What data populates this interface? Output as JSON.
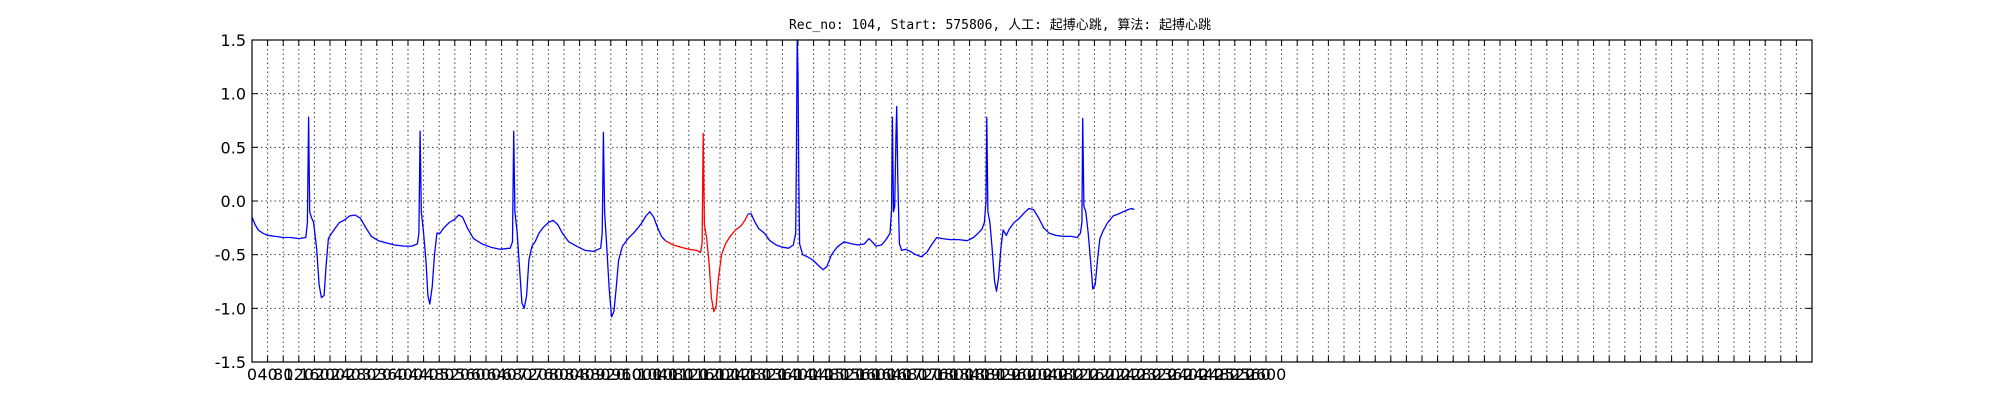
{
  "chart_data": {
    "type": "line",
    "title": "Rec_no: 104, Start: 575806, 人工: 起搏心跳, 算法: 起搏心跳",
    "xlabel": "",
    "ylabel": "",
    "xlim": [
      0,
      4000
    ],
    "ylim": [
      -1.5,
      1.5
    ],
    "grid": true,
    "x_tick_step": 40,
    "x_ticks_labeled_max": 2800,
    "y_ticks": [
      "1.5",
      "1.0",
      "0.5",
      "0.0",
      "-0.5",
      "-1.0",
      "-1.5"
    ],
    "x_tick_labels": [
      "0",
      "40",
      "80",
      "120",
      "160",
      "200",
      "240",
      "280",
      "320",
      "360",
      "400",
      "440",
      "480",
      "520",
      "560",
      "600",
      "640",
      "680",
      "720",
      "760",
      "800",
      "840",
      "880",
      "920",
      "960",
      "1000",
      "1040",
      "1080",
      "1120",
      "1160",
      "1200",
      "1240",
      "1280",
      "1320",
      "1360",
      "1400",
      "1440",
      "1480",
      "1520",
      "1560",
      "1600",
      "1640",
      "1680",
      "1720",
      "1760",
      "1800",
      "1840",
      "1880",
      "1920",
      "1960",
      "2000",
      "2040",
      "2080",
      "2120",
      "2160",
      "2200",
      "2240",
      "2280",
      "2320",
      "2360",
      "2400",
      "2440",
      "2480",
      "2520",
      "2560",
      "2600"
    ],
    "series": [
      {
        "color": "#0000ff",
        "points": [
          [
            0,
            -0.15
          ],
          [
            8,
            -0.22
          ],
          [
            16,
            -0.27
          ],
          [
            28,
            -0.3
          ],
          [
            40,
            -0.32
          ],
          [
            60,
            -0.33
          ],
          [
            80,
            -0.34
          ],
          [
            100,
            -0.34
          ],
          [
            120,
            -0.35
          ],
          [
            138,
            -0.34
          ],
          [
            142,
            -0.2
          ],
          [
            145,
            0.78
          ],
          [
            148,
            -0.1
          ],
          [
            152,
            -0.15
          ],
          [
            158,
            -0.2
          ],
          [
            166,
            -0.45
          ],
          [
            172,
            -0.78
          ],
          [
            178,
            -0.9
          ],
          [
            185,
            -0.88
          ],
          [
            190,
            -0.6
          ],
          [
            196,
            -0.35
          ],
          [
            204,
            -0.3
          ],
          [
            214,
            -0.25
          ],
          [
            224,
            -0.2
          ],
          [
            236,
            -0.18
          ],
          [
            250,
            -0.14
          ],
          [
            264,
            -0.13
          ],
          [
            278,
            -0.16
          ],
          [
            292,
            -0.25
          ],
          [
            306,
            -0.33
          ],
          [
            324,
            -0.37
          ],
          [
            344,
            -0.39
          ],
          [
            366,
            -0.41
          ],
          [
            390,
            -0.42
          ],
          [
            410,
            -0.42
          ],
          [
            424,
            -0.4
          ],
          [
            428,
            -0.3
          ],
          [
            431,
            0.65
          ],
          [
            434,
            -0.1
          ],
          [
            440,
            -0.3
          ],
          [
            446,
            -0.55
          ],
          [
            451,
            -0.88
          ],
          [
            456,
            -0.96
          ],
          [
            462,
            -0.8
          ],
          [
            468,
            -0.5
          ],
          [
            474,
            -0.3
          ],
          [
            482,
            -0.3
          ],
          [
            492,
            -0.25
          ],
          [
            506,
            -0.2
          ],
          [
            520,
            -0.17
          ],
          [
            530,
            -0.13
          ],
          [
            540,
            -0.15
          ],
          [
            552,
            -0.25
          ],
          [
            568,
            -0.35
          ],
          [
            590,
            -0.4
          ],
          [
            612,
            -0.43
          ],
          [
            636,
            -0.45
          ],
          [
            662,
            -0.44
          ],
          [
            668,
            -0.38
          ],
          [
            671,
            0.65
          ],
          [
            674,
            -0.1
          ],
          [
            680,
            -0.3
          ],
          [
            686,
            -0.62
          ],
          [
            692,
            -0.95
          ],
          [
            698,
            -1.0
          ],
          [
            704,
            -0.88
          ],
          [
            710,
            -0.55
          ],
          [
            718,
            -0.42
          ],
          [
            726,
            -0.38
          ],
          [
            736,
            -0.3
          ],
          [
            746,
            -0.25
          ],
          [
            760,
            -0.2
          ],
          [
            772,
            -0.18
          ],
          [
            784,
            -0.22
          ],
          [
            796,
            -0.3
          ],
          [
            812,
            -0.38
          ],
          [
            832,
            -0.42
          ],
          [
            854,
            -0.46
          ],
          [
            876,
            -0.47
          ],
          [
            894,
            -0.44
          ],
          [
            898,
            -0.3
          ],
          [
            901,
            0.64
          ],
          [
            904,
            -0.1
          ],
          [
            910,
            -0.45
          ],
          [
            916,
            -0.82
          ],
          [
            922,
            -1.08
          ],
          [
            928,
            -1.03
          ],
          [
            934,
            -0.8
          ],
          [
            940,
            -0.55
          ],
          [
            950,
            -0.42
          ],
          [
            964,
            -0.35
          ],
          [
            978,
            -0.3
          ],
          [
            990,
            -0.25
          ],
          [
            1000,
            -0.2
          ],
          [
            1010,
            -0.14
          ],
          [
            1020,
            -0.1
          ],
          [
            1030,
            -0.15
          ],
          [
            1040,
            -0.25
          ],
          [
            1050,
            -0.33
          ],
          [
            1060,
            -0.37
          ]
        ]
      },
      {
        "color": "#ff0000",
        "points": [
          [
            1060,
            -0.37
          ],
          [
            1080,
            -0.41
          ],
          [
            1100,
            -0.43
          ],
          [
            1120,
            -0.45
          ],
          [
            1140,
            -0.46
          ],
          [
            1150,
            -0.48
          ],
          [
            1154,
            -0.4
          ],
          [
            1157,
            0.63
          ],
          [
            1160,
            -0.22
          ],
          [
            1166,
            -0.35
          ],
          [
            1172,
            -0.58
          ],
          [
            1178,
            -0.9
          ],
          [
            1184,
            -1.03
          ],
          [
            1190,
            -0.98
          ],
          [
            1196,
            -0.72
          ],
          [
            1204,
            -0.5
          ],
          [
            1214,
            -0.4
          ],
          [
            1226,
            -0.33
          ],
          [
            1240,
            -0.27
          ],
          [
            1254,
            -0.23
          ],
          [
            1264,
            -0.18
          ],
          [
            1272,
            -0.12
          ]
        ]
      },
      {
        "color": "#0000ff",
        "points": [
          [
            1272,
            -0.12
          ],
          [
            1280,
            -0.12
          ],
          [
            1290,
            -0.2
          ],
          [
            1300,
            -0.26
          ],
          [
            1314,
            -0.3
          ],
          [
            1328,
            -0.37
          ],
          [
            1344,
            -0.41
          ],
          [
            1360,
            -0.43
          ],
          [
            1376,
            -0.44
          ],
          [
            1388,
            -0.41
          ],
          [
            1394,
            -0.3
          ],
          [
            1396,
            0.4
          ],
          [
            1398,
            1.5
          ],
          [
            1400,
            1.2
          ],
          [
            1402,
            0.2
          ],
          [
            1404,
            -0.4
          ],
          [
            1412,
            -0.5
          ],
          [
            1424,
            -0.52
          ],
          [
            1438,
            -0.55
          ],
          [
            1452,
            -0.6
          ],
          [
            1464,
            -0.64
          ],
          [
            1474,
            -0.61
          ],
          [
            1486,
            -0.5
          ],
          [
            1500,
            -0.43
          ],
          [
            1518,
            -0.38
          ],
          [
            1538,
            -0.4
          ],
          [
            1556,
            -0.41
          ],
          [
            1570,
            -0.4
          ],
          [
            1582,
            -0.35
          ],
          [
            1590,
            -0.38
          ],
          [
            1600,
            -0.42
          ],
          [
            1614,
            -0.41
          ],
          [
            1626,
            -0.36
          ],
          [
            1636,
            -0.3
          ],
          [
            1640,
            -0.08
          ],
          [
            1642,
            0.78
          ],
          [
            1645,
            -0.1
          ],
          [
            1648,
            -0.05
          ],
          [
            1651,
            0.58
          ],
          [
            1653,
            0.88
          ],
          [
            1656,
            0.2
          ],
          [
            1660,
            -0.4
          ],
          [
            1666,
            -0.46
          ],
          [
            1676,
            -0.45
          ],
          [
            1688,
            -0.47
          ],
          [
            1702,
            -0.5
          ],
          [
            1716,
            -0.52
          ],
          [
            1730,
            -0.48
          ],
          [
            1744,
            -0.4
          ],
          [
            1756,
            -0.34
          ],
          [
            1770,
            -0.35
          ],
          [
            1790,
            -0.36
          ],
          [
            1812,
            -0.36
          ],
          [
            1834,
            -0.37
          ],
          [
            1850,
            -0.34
          ],
          [
            1862,
            -0.3
          ],
          [
            1872,
            -0.26
          ],
          [
            1878,
            -0.2
          ],
          [
            1882,
            0.0
          ],
          [
            1884,
            0.78
          ],
          [
            1887,
            -0.1
          ],
          [
            1892,
            -0.2
          ],
          [
            1898,
            -0.45
          ],
          [
            1904,
            -0.75
          ],
          [
            1909,
            -0.84
          ],
          [
            1914,
            -0.72
          ],
          [
            1920,
            -0.45
          ],
          [
            1926,
            -0.27
          ],
          [
            1934,
            -0.32
          ],
          [
            1942,
            -0.26
          ],
          [
            1954,
            -0.2
          ],
          [
            1968,
            -0.16
          ],
          [
            1980,
            -0.11
          ],
          [
            1992,
            -0.07
          ],
          [
            2004,
            -0.08
          ],
          [
            2016,
            -0.15
          ],
          [
            2030,
            -0.25
          ],
          [
            2044,
            -0.3
          ],
          [
            2060,
            -0.32
          ],
          [
            2080,
            -0.33
          ],
          [
            2100,
            -0.33
          ],
          [
            2116,
            -0.34
          ],
          [
            2124,
            -0.3
          ],
          [
            2128,
            -0.2
          ],
          [
            2130,
            0.77
          ],
          [
            2133,
            -0.05
          ],
          [
            2138,
            -0.1
          ],
          [
            2144,
            -0.3
          ],
          [
            2150,
            -0.55
          ],
          [
            2156,
            -0.82
          ],
          [
            2162,
            -0.78
          ],
          [
            2168,
            -0.55
          ],
          [
            2174,
            -0.35
          ],
          [
            2182,
            -0.28
          ],
          [
            2194,
            -0.2
          ],
          [
            2208,
            -0.14
          ],
          [
            2222,
            -0.12
          ],
          [
            2234,
            -0.1
          ],
          [
            2246,
            -0.08
          ],
          [
            2256,
            -0.07
          ],
          [
            2262,
            -0.08
          ]
        ]
      }
    ]
  }
}
